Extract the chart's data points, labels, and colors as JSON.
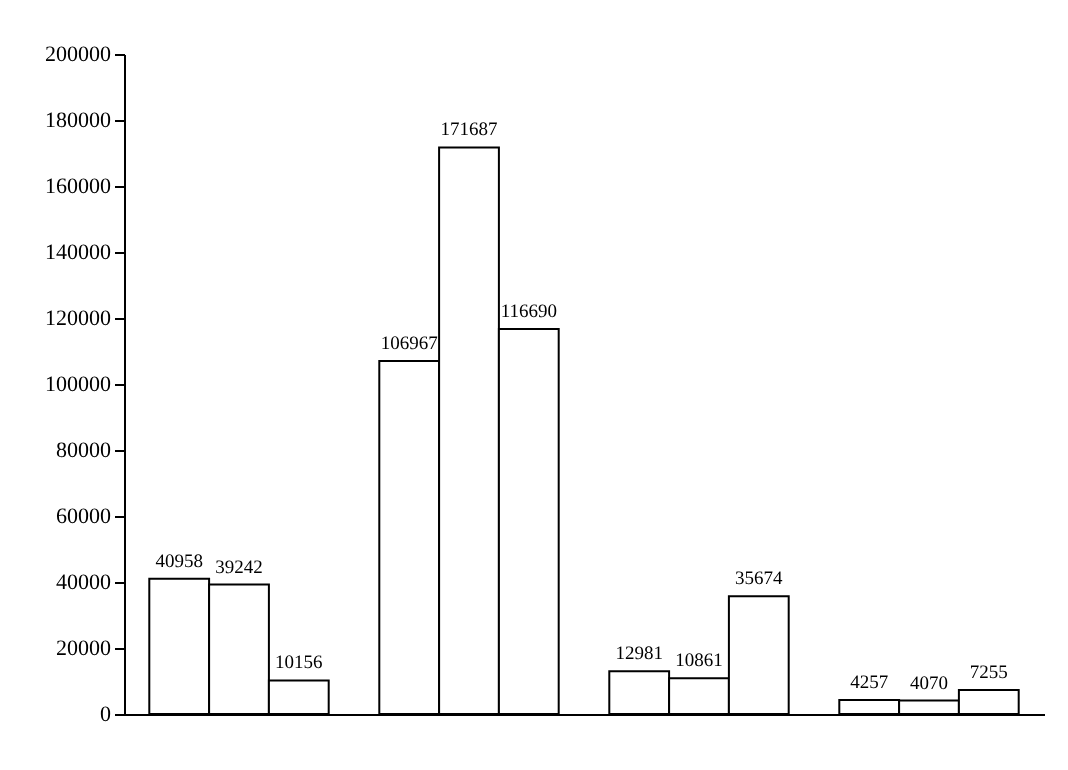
{
  "chart_data": {
    "type": "bar",
    "categories": [
      null,
      null,
      null,
      null
    ],
    "series": [
      {
        "color": "#ffffff",
        "values": [
          40958,
          106967,
          12981,
          4257
        ]
      },
      {
        "color": "#ffffff",
        "values": [
          39242,
          171687,
          10861,
          4070
        ]
      },
      {
        "color": "#ffffff",
        "values": [
          10156,
          116690,
          35674,
          7255
        ]
      }
    ],
    "ylim": [
      0,
      200000
    ],
    "yticks": [
      0,
      20000,
      40000,
      60000,
      80000,
      100000,
      120000,
      140000,
      160000,
      180000,
      200000
    ],
    "data_labels": true,
    "grid": false
  }
}
